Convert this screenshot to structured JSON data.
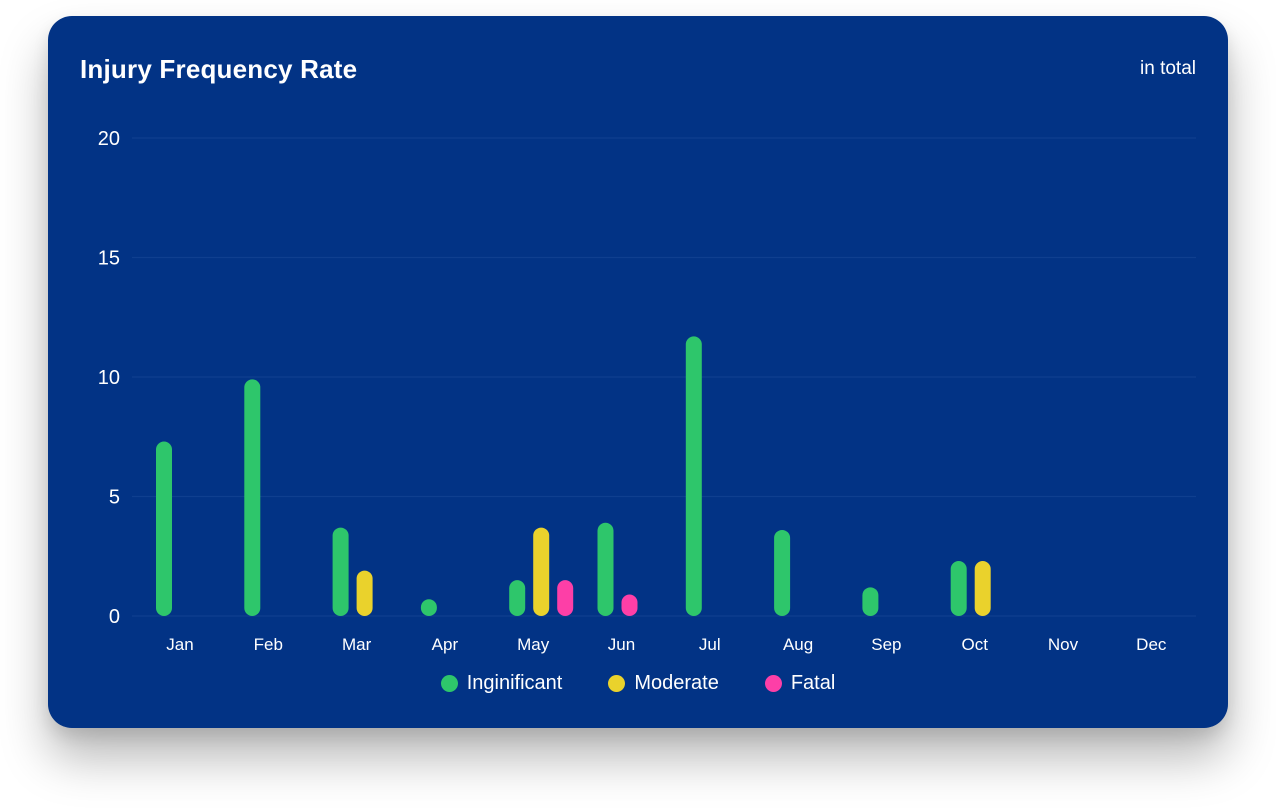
{
  "chart_data": {
    "type": "bar",
    "title": "Injury Frequency Rate",
    "subtitle": "in total",
    "xlabel": "",
    "ylabel": "",
    "ylim": [
      0,
      20
    ],
    "yticks": [
      "0",
      "5",
      "10",
      "15",
      "20"
    ],
    "grid": true,
    "legend_position": "bottom-center",
    "categories": [
      "Jan",
      "Feb",
      "Mar",
      "Apr",
      "May",
      "Jun",
      "Jul",
      "Aug",
      "Sep",
      "Oct",
      "Nov",
      "Dec"
    ],
    "series": [
      {
        "name": "Inginificant",
        "color": "#2ec66b",
        "values": [
          7.3,
          9.9,
          3.7,
          0.7,
          1.5,
          3.9,
          11.7,
          3.6,
          1.2,
          2.3,
          0,
          0
        ]
      },
      {
        "name": "Moderate",
        "color": "#ead22c",
        "values": [
          0,
          0,
          1.9,
          0,
          3.7,
          0,
          0,
          0,
          0,
          2.3,
          0,
          0
        ]
      },
      {
        "name": "Fatal",
        "color": "#fd3fa7",
        "values": [
          0,
          0,
          0,
          0,
          1.5,
          0.9,
          0,
          0,
          0,
          0,
          0,
          0
        ]
      }
    ]
  },
  "colors": {
    "card_background": "#023385",
    "gridline": "#0f3f8f",
    "text": "#ffffff"
  }
}
